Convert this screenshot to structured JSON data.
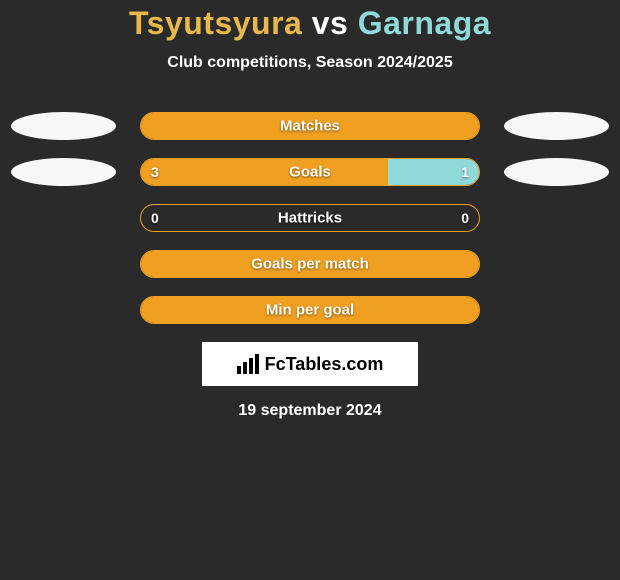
{
  "title": "Tsyutsyura vs Garnaga",
  "title_color_left": "#e8b94a",
  "title_color_right": "#8fd9d9",
  "subtitle": "Club competitions, Season 2024/2025",
  "background_color": "#2a2a2a",
  "bars": [
    {
      "label": "Matches",
      "left_value": "",
      "right_value": "",
      "left_fill_pct": 100,
      "right_fill_pct": 0,
      "show_ellipses": true,
      "left_bar_color": "#f0a020",
      "right_bar_color": "#8fd9d9"
    },
    {
      "label": "Goals",
      "left_value": "3",
      "right_value": "1",
      "left_fill_pct": 73,
      "right_fill_pct": 27,
      "show_ellipses": true,
      "left_bar_color": "#f0a020",
      "right_bar_color": "#8fd9d9"
    },
    {
      "label": "Hattricks",
      "left_value": "0",
      "right_value": "0",
      "left_fill_pct": 0,
      "right_fill_pct": 0,
      "show_ellipses": false,
      "left_bar_color": "#f0a020",
      "right_bar_color": "#8fd9d9"
    },
    {
      "label": "Goals per match",
      "left_value": "",
      "right_value": "",
      "left_fill_pct": 100,
      "right_fill_pct": 0,
      "show_ellipses": false,
      "left_bar_color": "#f0a020",
      "right_bar_color": "#8fd9d9"
    },
    {
      "label": "Min per goal",
      "left_value": "",
      "right_value": "",
      "left_fill_pct": 100,
      "right_fill_pct": 0,
      "show_ellipses": false,
      "left_bar_color": "#f0a020",
      "right_bar_color": "#8fd9d9"
    }
  ],
  "logo_text": "FcTables.com",
  "footer_date": "19 september 2024",
  "ellipse_color": "#f7f7f7",
  "border_color": "#f0a020"
}
